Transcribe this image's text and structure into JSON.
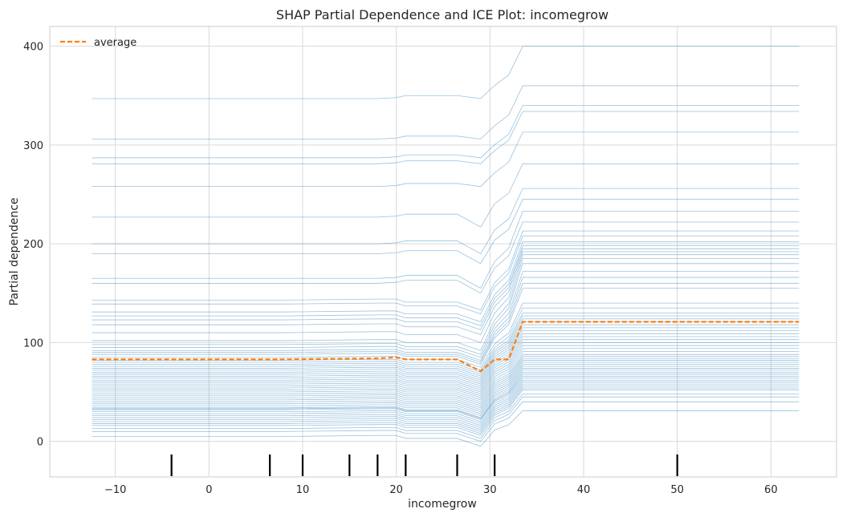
{
  "chart_data": {
    "type": "line",
    "title": "SHAP Partial Dependence and ICE Plot: incomegrow",
    "xlabel": "incomegrow",
    "ylabel": "Partial dependence",
    "xlim": [
      -17,
      67
    ],
    "ylim": [
      -36,
      420
    ],
    "xticks": [
      -10,
      0,
      10,
      20,
      30,
      40,
      50,
      60
    ],
    "xtick_labels": [
      "−10",
      "0",
      "10",
      "20",
      "30",
      "40",
      "50",
      "60"
    ],
    "yticks": [
      0,
      100,
      200,
      300,
      400
    ],
    "ytick_labels": [
      "0",
      "100",
      "200",
      "300",
      "400"
    ],
    "grid": true,
    "legend": {
      "placement": "top-left",
      "entries": [
        "average"
      ]
    },
    "x": [
      -12.5,
      8,
      18,
      20,
      21,
      26.5,
      29,
      30.5,
      32,
      33.5,
      63
    ],
    "average": {
      "name": "average",
      "color": "#ff7f0e",
      "values": [
        83,
        83,
        84,
        85,
        83,
        83,
        71,
        83,
        83,
        121,
        121
      ]
    },
    "ice_color": "#1f77b4",
    "ice_base_values": [
      347,
      306,
      287,
      281,
      258,
      227,
      200,
      190,
      165,
      160,
      143,
      139,
      131,
      127,
      123,
      118,
      110,
      102,
      98,
      95,
      92,
      90,
      88,
      85,
      82,
      80,
      78,
      76,
      74,
      72,
      70,
      68,
      66,
      64,
      62,
      60,
      58,
      56,
      54,
      52,
      50,
      48,
      46,
      44,
      42,
      40,
      38,
      36,
      34,
      33,
      32,
      30,
      28,
      26,
      24,
      22,
      20,
      18,
      16,
      13,
      10,
      5
    ],
    "ice_final_values": [
      400,
      360,
      340,
      334,
      313,
      281,
      256,
      245,
      233,
      222,
      213,
      208,
      202,
      198,
      195,
      192,
      189,
      185,
      180,
      172,
      166,
      160,
      155,
      140,
      135,
      130,
      127,
      124,
      121,
      118,
      115,
      112,
      109,
      106,
      103,
      100,
      97,
      94,
      91,
      88,
      86,
      84,
      82,
      80,
      78,
      76,
      74,
      72,
      70,
      68,
      66,
      64,
      62,
      60,
      58,
      56,
      54,
      52,
      48,
      45,
      40,
      31
    ],
    "ice_dip_values": [
      347,
      306,
      287,
      281,
      258,
      227,
      200,
      190,
      165,
      160,
      143,
      139,
      131,
      127,
      123,
      118,
      110,
      102,
      98,
      95,
      92,
      90,
      88,
      85,
      82,
      80,
      78,
      76,
      74,
      72,
      70,
      68,
      66,
      64,
      62,
      60,
      58,
      56,
      54,
      52,
      50,
      48,
      46,
      44,
      42,
      40,
      38,
      36,
      34,
      33,
      32,
      30,
      28,
      26,
      24,
      22,
      20,
      18,
      16,
      13,
      10,
      5
    ],
    "ice_adjust": [
      0,
      0,
      0,
      0,
      0,
      0,
      0,
      0,
      0,
      0,
      0,
      0,
      0,
      0,
      0,
      0,
      0,
      0,
      0,
      0,
      0,
      0,
      0,
      0,
      0,
      0,
      0,
      0,
      0,
      0,
      0,
      0,
      0,
      0,
      0,
      0,
      0,
      0,
      0,
      0,
      0,
      0,
      0,
      0,
      0,
      0,
      0,
      0,
      0,
      0,
      0,
      0,
      0,
      0,
      0,
      0,
      0,
      0,
      0,
      0,
      0,
      0
    ],
    "rug_x": [
      -4,
      6.5,
      10,
      15,
      18,
      21,
      26.5,
      30.5,
      50
    ]
  }
}
